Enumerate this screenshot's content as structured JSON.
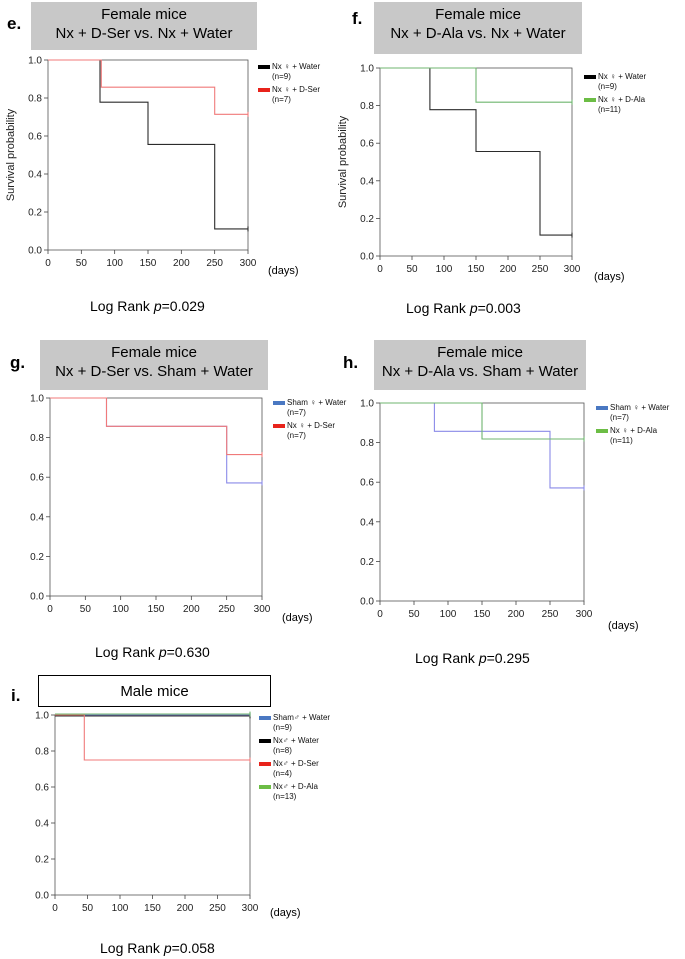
{
  "colors": {
    "water_black": "#2b2b2b",
    "dser_red": "#f07a7a",
    "dala_green": "#6fb56f",
    "sham_blue": "#8a8ae8",
    "legend_black": "#000000",
    "legend_red": "#e8231b",
    "legend_green": "#6cbd45",
    "legend_blue": "#4a78c2"
  },
  "chart_data": [
    {
      "id": "e",
      "type": "line",
      "panel_label": "e.",
      "title_lines": [
        "Female mice",
        "Nx + D-Ser vs. Nx + Water"
      ],
      "ylabel": "Survival probability",
      "xunit": "(days)",
      "xlim": [
        0,
        300
      ],
      "ylim": [
        0,
        1.0
      ],
      "xticks": [
        0,
        50,
        100,
        150,
        200,
        250,
        300
      ],
      "yticks": [
        0.0,
        0.2,
        0.4,
        0.6,
        0.8,
        1.0
      ],
      "pvalue_prefix": "Log Rank ",
      "pvalue_symbol": "p",
      "pvalue_value": "=0.029",
      "series": [
        {
          "name": "Nx ♀ + Water",
          "n": "(n=9)",
          "color_key": "water_black",
          "legend_color_key": "legend_black",
          "x": [
            0,
            78,
            78,
            150,
            150,
            250,
            250,
            300
          ],
          "y": [
            1.0,
            1.0,
            0.778,
            0.778,
            0.556,
            0.556,
            0.111,
            0.111
          ]
        },
        {
          "name": "Nx ♀ + D-Ser",
          "n": "(n=7)",
          "color_key": "dser_red",
          "legend_color_key": "legend_red",
          "x": [
            0,
            80,
            80,
            250,
            250,
            300
          ],
          "y": [
            1.0,
            1.0,
            0.857,
            0.857,
            0.714,
            0.714
          ]
        }
      ]
    },
    {
      "id": "f",
      "type": "line",
      "panel_label": "f.",
      "title_lines": [
        "Female mice",
        "Nx + D-Ala vs. Nx + Water"
      ],
      "ylabel": "Survival probability",
      "xunit": "(days)",
      "xlim": [
        0,
        300
      ],
      "ylim": [
        0,
        1.0
      ],
      "xticks": [
        0,
        50,
        100,
        150,
        200,
        250,
        300
      ],
      "yticks": [
        0.0,
        0.2,
        0.4,
        0.6,
        0.8,
        1.0
      ],
      "pvalue_prefix": "Log Rank ",
      "pvalue_symbol": "p",
      "pvalue_value": "=0.003",
      "series": [
        {
          "name": "Nx ♀ + Water",
          "n": "(n=9)",
          "color_key": "water_black",
          "legend_color_key": "legend_black",
          "x": [
            0,
            78,
            78,
            150,
            150,
            250,
            250,
            300
          ],
          "y": [
            1.0,
            1.0,
            0.778,
            0.778,
            0.556,
            0.556,
            0.111,
            0.111
          ]
        },
        {
          "name": "Nx ♀ + D-Ala",
          "n": "(n=11)",
          "color_key": "dala_green",
          "legend_color_key": "legend_green",
          "x": [
            0,
            150,
            150,
            300
          ],
          "y": [
            1.0,
            1.0,
            0.818,
            0.818
          ]
        }
      ]
    },
    {
      "id": "g",
      "type": "line",
      "panel_label": "g.",
      "title_lines": [
        "Female mice",
        "Nx + D-Ser vs. Sham + Water"
      ],
      "ylabel": "",
      "xunit": "(days)",
      "xlim": [
        0,
        300
      ],
      "ylim": [
        0,
        1.0
      ],
      "xticks": [
        0,
        50,
        100,
        150,
        200,
        250,
        300
      ],
      "yticks": [
        0.0,
        0.2,
        0.4,
        0.6,
        0.8,
        1.0
      ],
      "pvalue_prefix": "Log Rank ",
      "pvalue_symbol": "p",
      "pvalue_value": "=0.630",
      "series": [
        {
          "name": "Sham ♀ + Water",
          "n": "(n=7)",
          "color_key": "sham_blue",
          "legend_color_key": "legend_blue",
          "x": [
            0,
            80,
            80,
            250,
            250,
            300
          ],
          "y": [
            1.0,
            1.0,
            0.857,
            0.857,
            0.571,
            0.571
          ]
        },
        {
          "name": "Nx ♀ + D-Ser",
          "n": "(n=7)",
          "color_key": "dser_red",
          "legend_color_key": "legend_red",
          "x": [
            0,
            80,
            80,
            250,
            250,
            300
          ],
          "y": [
            1.0,
            1.0,
            0.857,
            0.857,
            0.714,
            0.714
          ]
        }
      ]
    },
    {
      "id": "h",
      "type": "line",
      "panel_label": "h.",
      "title_lines": [
        "Female mice",
        "Nx + D-Ala vs. Sham + Water"
      ],
      "ylabel": "",
      "xunit": "(days)",
      "xlim": [
        0,
        300
      ],
      "ylim": [
        0,
        1.0
      ],
      "xticks": [
        0,
        50,
        100,
        150,
        200,
        250,
        300
      ],
      "yticks": [
        0.0,
        0.2,
        0.4,
        0.6,
        0.8,
        1.0
      ],
      "pvalue_prefix": "Log Rank ",
      "pvalue_symbol": "p",
      "pvalue_value": "=0.295",
      "series": [
        {
          "name": "Sham ♀ + Water",
          "n": "(n=7)",
          "color_key": "sham_blue",
          "legend_color_key": "legend_blue",
          "x": [
            0,
            80,
            80,
            250,
            250,
            300
          ],
          "y": [
            1.0,
            1.0,
            0.857,
            0.857,
            0.571,
            0.571
          ]
        },
        {
          "name": "Nx ♀ + D-Ala",
          "n": "(n=11)",
          "color_key": "dala_green",
          "legend_color_key": "legend_green",
          "x": [
            0,
            150,
            150,
            300
          ],
          "y": [
            1.0,
            1.0,
            0.818,
            0.818
          ]
        }
      ]
    },
    {
      "id": "i",
      "type": "line",
      "panel_label": "i.",
      "title_lines": [
        "Male mice"
      ],
      "ylabel": "",
      "xunit": "(days)",
      "xlim": [
        0,
        300
      ],
      "ylim": [
        0,
        1.0
      ],
      "xticks": [
        0,
        50,
        100,
        150,
        200,
        250,
        300
      ],
      "yticks": [
        0.0,
        0.2,
        0.4,
        0.6,
        0.8,
        1.0
      ],
      "pvalue_prefix": "Log Rank ",
      "pvalue_symbol": "p",
      "pvalue_value": "=0.058",
      "series": [
        {
          "name": "Sham♂ + Water",
          "n": "(n=9)",
          "color_key": "sham_blue",
          "legend_color_key": "legend_blue",
          "x": [
            0,
            300
          ],
          "y": [
            1.0,
            1.0
          ]
        },
        {
          "name": "Nx♂ + Water",
          "n": "(n=8)",
          "color_key": "water_black",
          "legend_color_key": "legend_black",
          "x": [
            0,
            300
          ],
          "y": [
            0.995,
            0.995
          ]
        },
        {
          "name": "Nx♂ + D-Ser",
          "n": "(n=4)",
          "color_key": "dser_red",
          "legend_color_key": "legend_red",
          "x": [
            0,
            45,
            45,
            300
          ],
          "y": [
            1.0,
            1.0,
            0.75,
            0.75
          ]
        },
        {
          "name": "Nx♂ + D-Ala",
          "n": "(n=13)",
          "color_key": "dala_green",
          "legend_color_key": "legend_green",
          "x": [
            0,
            300
          ],
          "y": [
            1.005,
            1.005
          ]
        }
      ]
    }
  ]
}
